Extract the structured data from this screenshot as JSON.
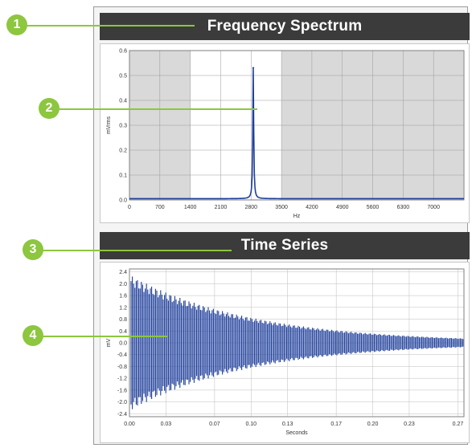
{
  "colors": {
    "accent": "#8dc63f",
    "header_bg": "#3b3b3b",
    "trace": "#1f3f9a"
  },
  "callouts": [
    {
      "number": "1",
      "target": "frequency-spectrum-header"
    },
    {
      "number": "2",
      "target": "spectrum-peak"
    },
    {
      "number": "3",
      "target": "time-series-header"
    },
    {
      "number": "4",
      "target": "time-series-trace"
    }
  ],
  "spectrum": {
    "title": "Frequency Spectrum"
  },
  "timeseries": {
    "title": "Time Series"
  },
  "chart_data": [
    {
      "type": "line",
      "name": "spectrum",
      "xlabel": "Hz",
      "ylabel": "mVrms",
      "xlim": [
        0,
        7700
      ],
      "ylim": [
        0,
        0.6
      ],
      "xticks": [
        "0",
        "700",
        "1400",
        "2100",
        "2800",
        "3500",
        "4200",
        "4900",
        "5600",
        "6300",
        "7000"
      ],
      "yticks": [
        "0.0",
        "0.1",
        "0.2",
        "0.3",
        "0.4",
        "0.5",
        "0.6"
      ],
      "shaded_regions": [
        [
          0,
          1400
        ],
        [
          3500,
          7700
        ]
      ],
      "peak": {
        "x": 2850,
        "y": 0.53
      },
      "baseline": 0.005,
      "grid": true
    },
    {
      "type": "line",
      "name": "timeseries",
      "xlabel": "Seconds",
      "ylabel": "mV",
      "xlim": [
        0,
        0.275
      ],
      "ylim": [
        -2.5,
        2.5
      ],
      "xticks": [
        "0.00",
        "0.03",
        "0.07",
        "0.10",
        "0.13",
        "0.17",
        "0.20",
        "0.23",
        "0.27"
      ],
      "yticks": [
        "2.4",
        "2.0",
        "1.6",
        "1.2",
        "0.8",
        "0.4",
        "0.0",
        "-0.4",
        "-0.8",
        "-1.2",
        "-1.6",
        "-2.0",
        "-2.4"
      ],
      "initial_amplitude": 2.3,
      "final_amplitude": 0.15,
      "grid": true
    }
  ]
}
